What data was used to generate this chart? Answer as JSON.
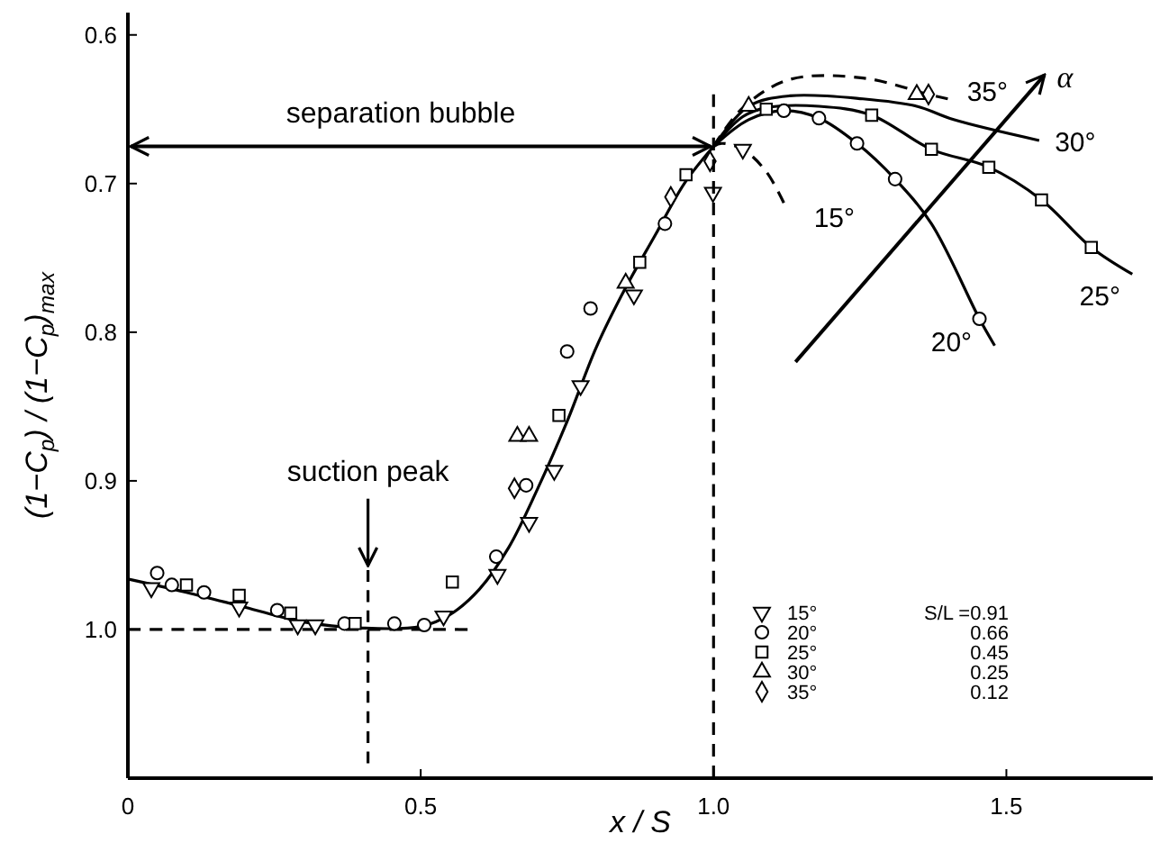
{
  "chart_data": {
    "type": "scatter",
    "xlabel": "x / S",
    "ylabel": "(1−C$_{p}$) / (1−C$_{p}$)$_{max}$",
    "xlim": [
      0,
      1.75
    ],
    "ylim": [
      1.1,
      0.585
    ],
    "xticks": [
      0,
      0.5,
      {
        "value": 1.0,
        "label": "1.0"
      },
      1.5
    ],
    "yticks": [
      0.6,
      0.7,
      0.8,
      0.9,
      {
        "value": 1.0,
        "label": "1.0"
      }
    ],
    "grid": false,
    "legend": "right",
    "series": [
      {
        "type": "line",
        "color": "#000000",
        "marker": "none",
        "line_style": "solid",
        "x": [
          0,
          0.1,
          0.2,
          0.3,
          0.4,
          0.5,
          0.55,
          0.6,
          0.65,
          0.7,
          0.75,
          0.8,
          0.85,
          0.9,
          0.95,
          1.0
        ],
        "values": [
          0.966,
          0.975,
          0.985,
          0.995,
          0.999,
          0.998,
          0.99,
          0.973,
          0.945,
          0.905,
          0.86,
          0.81,
          0.77,
          0.735,
          0.7,
          0.675
        ]
      },
      {
        "type": "line",
        "name": "15°",
        "color": "#000000",
        "marker": "none",
        "line_style": "dashed",
        "x": [
          1.0,
          1.014,
          1.05,
          1.09,
          1.12
        ],
        "values": [
          0.675,
          0.673,
          0.677,
          0.692,
          0.713
        ]
      },
      {
        "type": "line",
        "name": "20°",
        "color": "#000000",
        "marker": "none",
        "line_style": "solid",
        "x": [
          1.0,
          1.06,
          1.12,
          1.18,
          1.245,
          1.31,
          1.372,
          1.454,
          1.48
        ],
        "values": [
          0.675,
          0.657,
          0.651,
          0.656,
          0.673,
          0.697,
          0.727,
          0.791,
          0.809
        ]
      },
      {
        "type": "line",
        "name": "25°",
        "color": "#000000",
        "marker": "none",
        "line_style": "solid",
        "x": [
          1.0,
          1.05,
          1.09,
          1.18,
          1.27,
          1.372,
          1.47,
          1.56,
          1.645,
          1.715
        ],
        "values": [
          0.675,
          0.655,
          0.649,
          0.648,
          0.654,
          0.677,
          0.689,
          0.711,
          0.743,
          0.761
        ]
      },
      {
        "type": "line",
        "name": "30°",
        "color": "#000000",
        "marker": "none",
        "line_style": "solid",
        "x": [
          1.0,
          1.06,
          1.13,
          1.255,
          1.347,
          1.41,
          1.556
        ],
        "values": [
          0.675,
          0.648,
          0.641,
          0.643,
          0.648,
          0.657,
          0.671
        ]
      },
      {
        "type": "line",
        "name": "35°",
        "color": "#000000",
        "marker": "none",
        "line_style": "dashed",
        "x": [
          1.0,
          1.05,
          1.13,
          1.255,
          1.367,
          1.4
        ],
        "values": [
          0.675,
          0.649,
          0.63,
          0.629,
          0.64,
          0.643
        ]
      },
      {
        "type": "line",
        "color": "#000000",
        "marker": "none",
        "line_style": "dashed",
        "x": [
          0,
          0.58
        ],
        "values": [
          1.0,
          1.0
        ]
      },
      {
        "type": "line",
        "color": "#000000",
        "marker": "none",
        "line_style": "dashed",
        "x": [
          0.41,
          0.41
        ],
        "values": [
          0.96,
          1.09
        ]
      },
      {
        "name": "15°",
        "color": "#000000",
        "marker": "triangle-down",
        "x": [
          0.04,
          0.19,
          0.29,
          0.32,
          0.539,
          0.631,
          0.685,
          0.728,
          0.773,
          0.864,
          0.999,
          1.05
        ],
        "values": [
          0.972,
          0.985,
          0.997,
          0.997,
          0.991,
          0.963,
          0.928,
          0.893,
          0.836,
          0.775,
          0.706,
          0.677
        ]
      },
      {
        "name": "20°",
        "color": "#000000",
        "marker": "circle",
        "x": [
          0.05,
          0.075,
          0.13,
          0.255,
          0.37,
          0.455,
          0.506,
          0.629,
          0.68,
          0.75,
          0.79,
          0.917,
          1.12,
          1.18,
          1.245,
          1.31,
          1.454
        ],
        "values": [
          0.962,
          0.97,
          0.975,
          0.987,
          0.996,
          0.996,
          0.997,
          0.951,
          0.903,
          0.813,
          0.784,
          0.727,
          0.651,
          0.656,
          0.673,
          0.697,
          0.791
        ]
      },
      {
        "name": "25°",
        "color": "#000000",
        "marker": "square",
        "x": [
          0.1,
          0.19,
          0.278,
          0.388,
          0.554,
          0.736,
          0.874,
          0.953,
          1.09,
          1.27,
          1.372,
          1.47,
          1.56,
          1.645
        ],
        "values": [
          0.97,
          0.977,
          0.989,
          0.996,
          0.968,
          0.856,
          0.753,
          0.694,
          0.65,
          0.654,
          0.677,
          0.689,
          0.711,
          0.743
        ]
      },
      {
        "name": "30°",
        "color": "#000000",
        "marker": "triangle",
        "x": [
          0.665,
          0.685,
          0.85,
          1.06,
          1.347
        ],
        "values": [
          0.87,
          0.87,
          0.767,
          0.648,
          0.64
        ]
      },
      {
        "name": "35°",
        "color": "#000000",
        "marker": "diamond",
        "x": [
          0.66,
          0.927,
          0.994,
          1.367
        ],
        "values": [
          0.905,
          0.709,
          0.685,
          0.64
        ]
      }
    ],
    "ref_lines": [
      {
        "axis": "x",
        "value": 1.0,
        "line_style": "dashed",
        "color": "#000000"
      }
    ],
    "annotations": [
      "separation bubble",
      "suction peak",
      "α",
      "S/L =0.91",
      "0.66",
      "0.45",
      "0.25",
      "0.12"
    ]
  }
}
